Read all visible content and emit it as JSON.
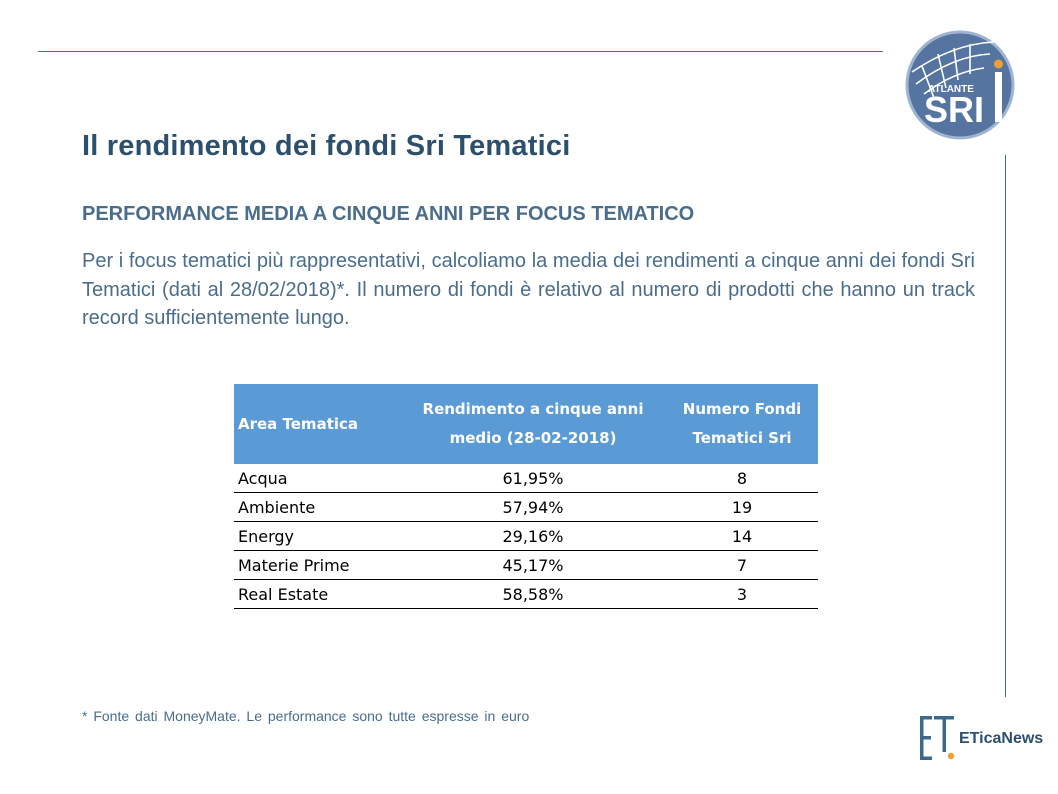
{
  "logo": {
    "top_text": "ATLANTE",
    "main_text": "SRI"
  },
  "title": "Il rendimento dei fondi Sri Tematici",
  "subtitle": "PERFORMANCE MEDIA A CINQUE ANNI PER FOCUS TEMATICO",
  "intro": "Per i focus tematici più rappresentativi, calcoliamo la media dei rendimenti a cinque anni dei fondi Sri Tematici (dati al 28/02/2018)*. Il numero di fondi è relativo al numero di prodotti che hanno un track record sufficientemente lungo.",
  "table": {
    "headers": [
      "Area Tematica",
      "Rendimento a cinque anni medio (28-02-2018)",
      "Numero Fondi Tematici Sri"
    ],
    "rows": [
      [
        "Acqua",
        "61,95%",
        "8"
      ],
      [
        "Ambiente",
        "57,94%",
        "19"
      ],
      [
        "Energy",
        "29,16%",
        "14"
      ],
      [
        "Materie Prime",
        "45,17%",
        "7"
      ],
      [
        "Real Estate",
        "58,58%",
        "3"
      ]
    ]
  },
  "footnote": "* Fonte dati MoneyMate.  Le performance sono tutte espresse in euro",
  "brand": {
    "name": "ETicaNews"
  },
  "colors": {
    "title": "#2d4f6e",
    "body_text": "#4a6d8c",
    "table_header": "#5b9bd5",
    "rule": "#3f6f8e",
    "logo_circle": "#5674a0",
    "accent_orange": "#f0a030"
  }
}
